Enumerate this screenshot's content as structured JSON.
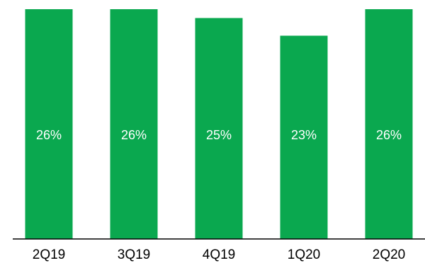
{
  "chart_data": {
    "type": "bar",
    "categories": [
      "2Q19",
      "3Q19",
      "4Q19",
      "1Q20",
      "2Q20"
    ],
    "values": [
      26,
      26,
      25,
      23,
      26
    ],
    "data_labels": [
      "26%",
      "26%",
      "25%",
      "23%",
      "26%"
    ],
    "unit": "%",
    "title": "",
    "xlabel": "",
    "ylabel": "",
    "ylim": [
      0,
      28
    ],
    "grid": false,
    "legend": "none",
    "bar_color": "#0aa84f",
    "axis_color": "#000000",
    "label_color": "#ffffff"
  }
}
